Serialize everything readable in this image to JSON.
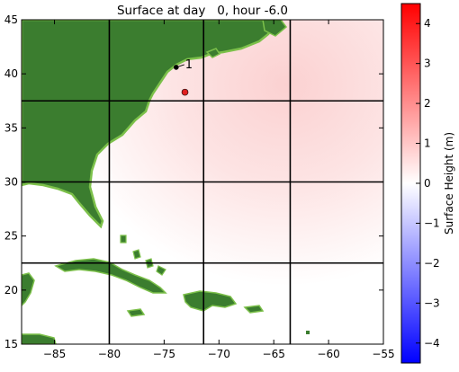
{
  "chart_data": {
    "type": "heatmap",
    "title": "Surface at day   0, hour -6.0",
    "xlabel": "",
    "ylabel": "",
    "xlim": [
      -88,
      -55
    ],
    "ylim": [
      15,
      45
    ],
    "xticks": [
      -85,
      -80,
      -75,
      -70,
      -65,
      -60,
      -55
    ],
    "yticks": [
      15,
      20,
      25,
      30,
      35,
      40,
      45
    ],
    "grid_lines": {
      "x": [
        -80,
        -71.4,
        -63.5
      ],
      "y": [
        22.5,
        30,
        37.5
      ]
    },
    "colorbar": {
      "label": "Surface Height (m)",
      "min": -4.5,
      "max": 4.5,
      "ticks": [
        -4,
        -3,
        -2,
        -1,
        0,
        1,
        2,
        3,
        4
      ],
      "colormap": [
        "#0000ff",
        "#ffffff",
        "#ff0000"
      ]
    },
    "land_color": "#3b7d2f",
    "coast_color": "#7cc04a",
    "field_peak": {
      "lon": -72.7,
      "lat": 38.9,
      "value": 0.25
    },
    "markers": [
      {
        "lon": -73.9,
        "lat": 40.6,
        "color": "#000000",
        "label": "1"
      },
      {
        "lon": -73.1,
        "lat": 38.3,
        "color": "#e02020",
        "label": ""
      }
    ]
  }
}
